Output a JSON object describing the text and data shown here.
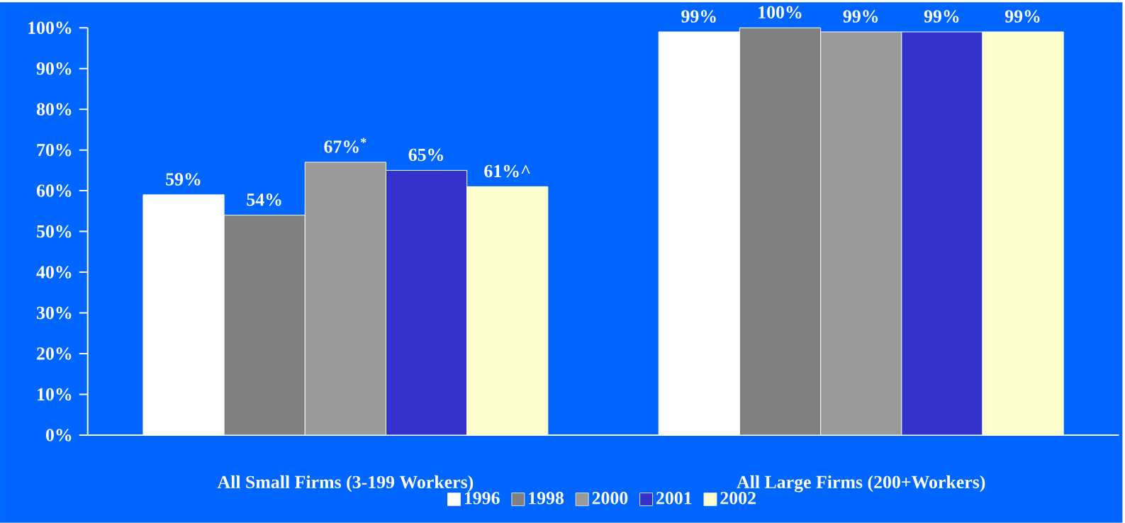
{
  "chart_data": {
    "type": "bar",
    "categories": [
      "All Small Firms (3-199 Workers)",
      "All Large Firms (200+Workers)"
    ],
    "series": [
      {
        "name": "1996",
        "color": "#ffffff",
        "values": [
          59,
          99
        ],
        "value_labels": [
          "59%",
          "99%"
        ]
      },
      {
        "name": "1998",
        "color": "#808080",
        "values": [
          54,
          100
        ],
        "value_labels": [
          "54%",
          "100%"
        ]
      },
      {
        "name": "2000",
        "color": "#999999",
        "values": [
          67,
          99
        ],
        "value_labels": [
          "67%$^{*}$",
          "99%"
        ]
      },
      {
        "name": "2001",
        "color": "#3333cc",
        "values": [
          65,
          99
        ],
        "value_labels": [
          "65%",
          "99%"
        ]
      },
      {
        "name": "2002",
        "color": "#ffffcc",
        "values": [
          61,
          99
        ],
        "value_labels": [
          "61%^",
          "99%"
        ]
      }
    ],
    "ylim": [
      0,
      100
    ],
    "yticks": [
      {
        "value": 0,
        "label": "0%"
      },
      {
        "value": 10,
        "label": "10%"
      },
      {
        "value": 20,
        "label": "20%"
      },
      {
        "value": 30,
        "label": "30%"
      },
      {
        "value": 40,
        "label": "40%"
      },
      {
        "value": 50,
        "label": "50%"
      },
      {
        "value": 60,
        "label": "60%"
      },
      {
        "value": 70,
        "label": "70%"
      },
      {
        "value": 80,
        "label": "80%"
      },
      {
        "value": 90,
        "label": "90%"
      },
      {
        "value": 100,
        "label": "100%"
      }
    ],
    "grid": false,
    "legend": "bottom"
  }
}
